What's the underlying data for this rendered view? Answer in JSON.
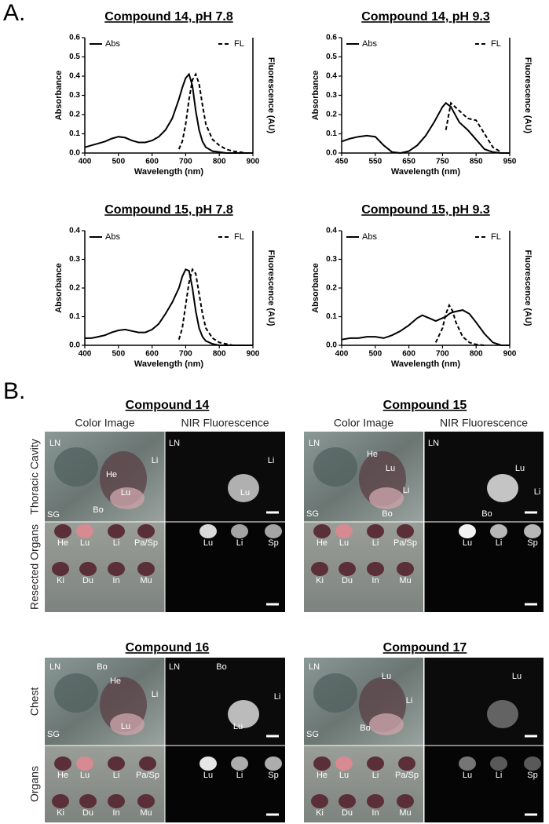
{
  "panel_labels": {
    "a": "A.",
    "b": "B."
  },
  "chart_data": [
    {
      "type": "line",
      "title": "Compound 14, pH 7.8",
      "x_label": "Wavelength (nm)",
      "y_label": "Absorbance",
      "y2_label": "Fluorescence (AU)",
      "x": [
        400,
        420,
        440,
        460,
        480,
        500,
        520,
        540,
        560,
        580,
        600,
        620,
        640,
        660,
        680,
        690,
        700,
        710,
        720,
        730,
        740,
        750,
        760,
        780,
        800,
        820,
        840,
        860,
        880,
        900
      ],
      "series": [
        {
          "name": "Abs",
          "color": "#000000",
          "line_style": "solid",
          "values": [
            0.03,
            0.04,
            0.05,
            0.06,
            0.075,
            0.085,
            0.08,
            0.065,
            0.055,
            0.055,
            0.065,
            0.085,
            0.12,
            0.18,
            0.28,
            0.34,
            0.39,
            0.41,
            0.35,
            0.22,
            0.12,
            0.06,
            0.03,
            0.01,
            0.005,
            0,
            0,
            0,
            0,
            0
          ]
        },
        {
          "name": "FL",
          "color": "#000000",
          "line_style": "dashed",
          "values": [
            null,
            null,
            null,
            null,
            null,
            null,
            null,
            null,
            null,
            null,
            null,
            null,
            null,
            null,
            0.02,
            0.06,
            0.15,
            0.28,
            0.38,
            0.41,
            0.36,
            0.25,
            0.15,
            0.07,
            0.04,
            0.02,
            0.01,
            0.005,
            0,
            null
          ]
        }
      ],
      "xlim": [
        400,
        900
      ],
      "xticks": [
        400,
        500,
        600,
        700,
        800,
        900
      ],
      "ylim": [
        0,
        0.6
      ],
      "yticks": [
        {
          "value": 0,
          "label": "0.0"
        },
        0.1,
        0.2,
        0.3,
        0.4,
        0.5,
        0.6
      ]
    },
    {
      "type": "line",
      "title": "Compound 14, pH 9.3",
      "x_label": "Wavelength (nm)",
      "y_label": "Absorbance",
      "y2_label": "Fluorescence (AU)",
      "x": [
        450,
        475,
        500,
        525,
        550,
        575,
        600,
        625,
        650,
        675,
        700,
        725,
        750,
        760,
        775,
        800,
        825,
        850,
        875,
        900,
        925,
        950
      ],
      "series": [
        {
          "name": "Abs",
          "color": "#000000",
          "line_style": "solid",
          "values": [
            0.06,
            0.075,
            0.085,
            0.09,
            0.085,
            0.04,
            0.005,
            0,
            0.01,
            0.04,
            0.09,
            0.16,
            0.24,
            0.26,
            0.24,
            0.16,
            0.12,
            0.07,
            0.02,
            0.005,
            0,
            0
          ]
        },
        {
          "name": "FL",
          "color": "#000000",
          "line_style": "dashed",
          "values": [
            null,
            null,
            null,
            null,
            null,
            null,
            null,
            null,
            null,
            null,
            null,
            null,
            null,
            0.12,
            0.26,
            0.22,
            0.18,
            0.17,
            0.1,
            0.03,
            0.005,
            null
          ]
        }
      ],
      "xlim": [
        450,
        950
      ],
      "xticks": [
        450,
        550,
        650,
        750,
        850,
        950
      ],
      "ylim": [
        0,
        0.6
      ],
      "yticks": [
        {
          "value": 0,
          "label": "0.0"
        },
        0.1,
        0.2,
        0.3,
        0.4,
        0.5,
        0.6
      ]
    },
    {
      "type": "line",
      "title": "Compound 15, pH 7.8",
      "x_label": "Wavelength (nm)",
      "y_label": "Absorbance",
      "y2_label": "Fluorescence (AU)",
      "x": [
        400,
        420,
        440,
        460,
        480,
        500,
        520,
        540,
        560,
        580,
        600,
        620,
        640,
        660,
        680,
        690,
        700,
        710,
        720,
        730,
        740,
        750,
        760,
        780,
        800,
        820,
        840,
        860,
        880,
        900
      ],
      "series": [
        {
          "name": "Abs",
          "color": "#000000",
          "line_style": "solid",
          "values": [
            0.025,
            0.025,
            0.03,
            0.035,
            0.045,
            0.052,
            0.055,
            0.05,
            0.045,
            0.045,
            0.055,
            0.075,
            0.11,
            0.15,
            0.2,
            0.24,
            0.265,
            0.26,
            0.2,
            0.12,
            0.06,
            0.03,
            0.015,
            0.005,
            0,
            0,
            0,
            0,
            0,
            0
          ]
        },
        {
          "name": "FL",
          "color": "#000000",
          "line_style": "dashed",
          "values": [
            null,
            null,
            null,
            null,
            null,
            null,
            null,
            null,
            null,
            null,
            null,
            null,
            null,
            null,
            0.02,
            0.06,
            0.14,
            0.22,
            0.265,
            0.25,
            0.18,
            0.11,
            0.06,
            0.025,
            0.01,
            0.005,
            0,
            0,
            null,
            null
          ]
        }
      ],
      "xlim": [
        400,
        900
      ],
      "xticks": [
        400,
        500,
        600,
        700,
        800,
        900
      ],
      "ylim": [
        0,
        0.4
      ],
      "yticks": [
        {
          "value": 0,
          "label": "0.0"
        },
        0.1,
        0.2,
        0.3,
        0.4
      ]
    },
    {
      "type": "line",
      "title": "Compound 15, pH 9.3",
      "x_label": "Wavelength (nm)",
      "y_label": "Absorbance",
      "y2_label": "Fluorescence (AU)",
      "x": [
        400,
        425,
        450,
        475,
        500,
        525,
        550,
        575,
        600,
        625,
        640,
        660,
        680,
        700,
        710,
        720,
        730,
        740,
        760,
        780,
        800,
        825,
        850,
        875,
        900
      ],
      "series": [
        {
          "name": "Abs",
          "color": "#000000",
          "line_style": "solid",
          "values": [
            0.02,
            0.025,
            0.025,
            0.03,
            0.03,
            0.025,
            0.035,
            0.05,
            0.07,
            0.095,
            0.105,
            0.095,
            0.085,
            0.095,
            0.1,
            0.11,
            0.115,
            0.118,
            0.123,
            0.11,
            0.08,
            0.04,
            0.01,
            0,
            0
          ]
        },
        {
          "name": "FL",
          "color": "#000000",
          "line_style": "dashed",
          "values": [
            null,
            null,
            null,
            null,
            null,
            null,
            null,
            null,
            null,
            null,
            null,
            null,
            0.01,
            0.06,
            0.11,
            0.14,
            0.12,
            0.08,
            0.03,
            0.01,
            0.003,
            0,
            null,
            null,
            null
          ]
        }
      ],
      "xlim": [
        400,
        900
      ],
      "xticks": [
        400,
        500,
        600,
        700,
        800,
        900
      ],
      "ylim": [
        0,
        0.4
      ],
      "yticks": [
        {
          "value": 0,
          "label": "0.0"
        },
        0.1,
        0.2,
        0.3,
        0.4
      ]
    }
  ],
  "imaging": {
    "panels": [
      {
        "title": "Compound 14",
        "columns": [
          "Color Image",
          "NIR Fluorescence"
        ],
        "rows": [
          "Thoracic Cavity",
          "Resected Organs"
        ],
        "labels": {
          "color_top": [
            "LN",
            "He",
            "Li",
            "Lu",
            "Bo",
            "SG"
          ],
          "nir_top": [
            "LN",
            "Li",
            "Lu"
          ],
          "color_bottom": [
            "He",
            "Lu",
            "Li",
            "Pa/Sp",
            "Ki",
            "Du",
            "In",
            "Mu"
          ],
          "nir_bottom": [
            "Lu",
            "Li",
            "Sp"
          ]
        }
      },
      {
        "title": "Compound 15",
        "columns": [
          "Color Image",
          "NIR Fluorescence"
        ],
        "labels": {
          "color_top": [
            "LN",
            "He",
            "Lu",
            "Li",
            "Bo",
            "SG"
          ],
          "nir_top": [
            "LN",
            "Lu",
            "Li",
            "Bo"
          ],
          "color_bottom": [
            "He",
            "Lu",
            "Li",
            "Pa/Sp",
            "Ki",
            "Du",
            "In",
            "Mu"
          ],
          "nir_bottom": [
            "Lu",
            "Li",
            "Sp"
          ]
        }
      },
      {
        "title": "Compound 16",
        "rows": [
          "Chest",
          "Organs"
        ],
        "labels": {
          "color_top": [
            "LN",
            "Bo",
            "He",
            "Li",
            "Lu",
            "SG"
          ],
          "nir_top": [
            "LN",
            "Bo",
            "Li",
            "Lu"
          ],
          "color_bottom": [
            "He",
            "Lu",
            "Li",
            "Pa/Sp",
            "Ki",
            "Du",
            "In",
            "Mu"
          ],
          "nir_bottom": [
            "Lu",
            "Li",
            "Sp"
          ]
        }
      },
      {
        "title": "Compound 17",
        "labels": {
          "color_top": [
            "LN",
            "Lu",
            "Li",
            "Bo",
            "SG"
          ],
          "nir_top": [
            "Lu"
          ],
          "color_bottom": [
            "He",
            "Lu",
            "Li",
            "Pa/Sp",
            "Ki",
            "Du",
            "In",
            "Mu"
          ],
          "nir_bottom": [
            "Lu",
            "Li",
            "Sp"
          ]
        }
      }
    ]
  }
}
